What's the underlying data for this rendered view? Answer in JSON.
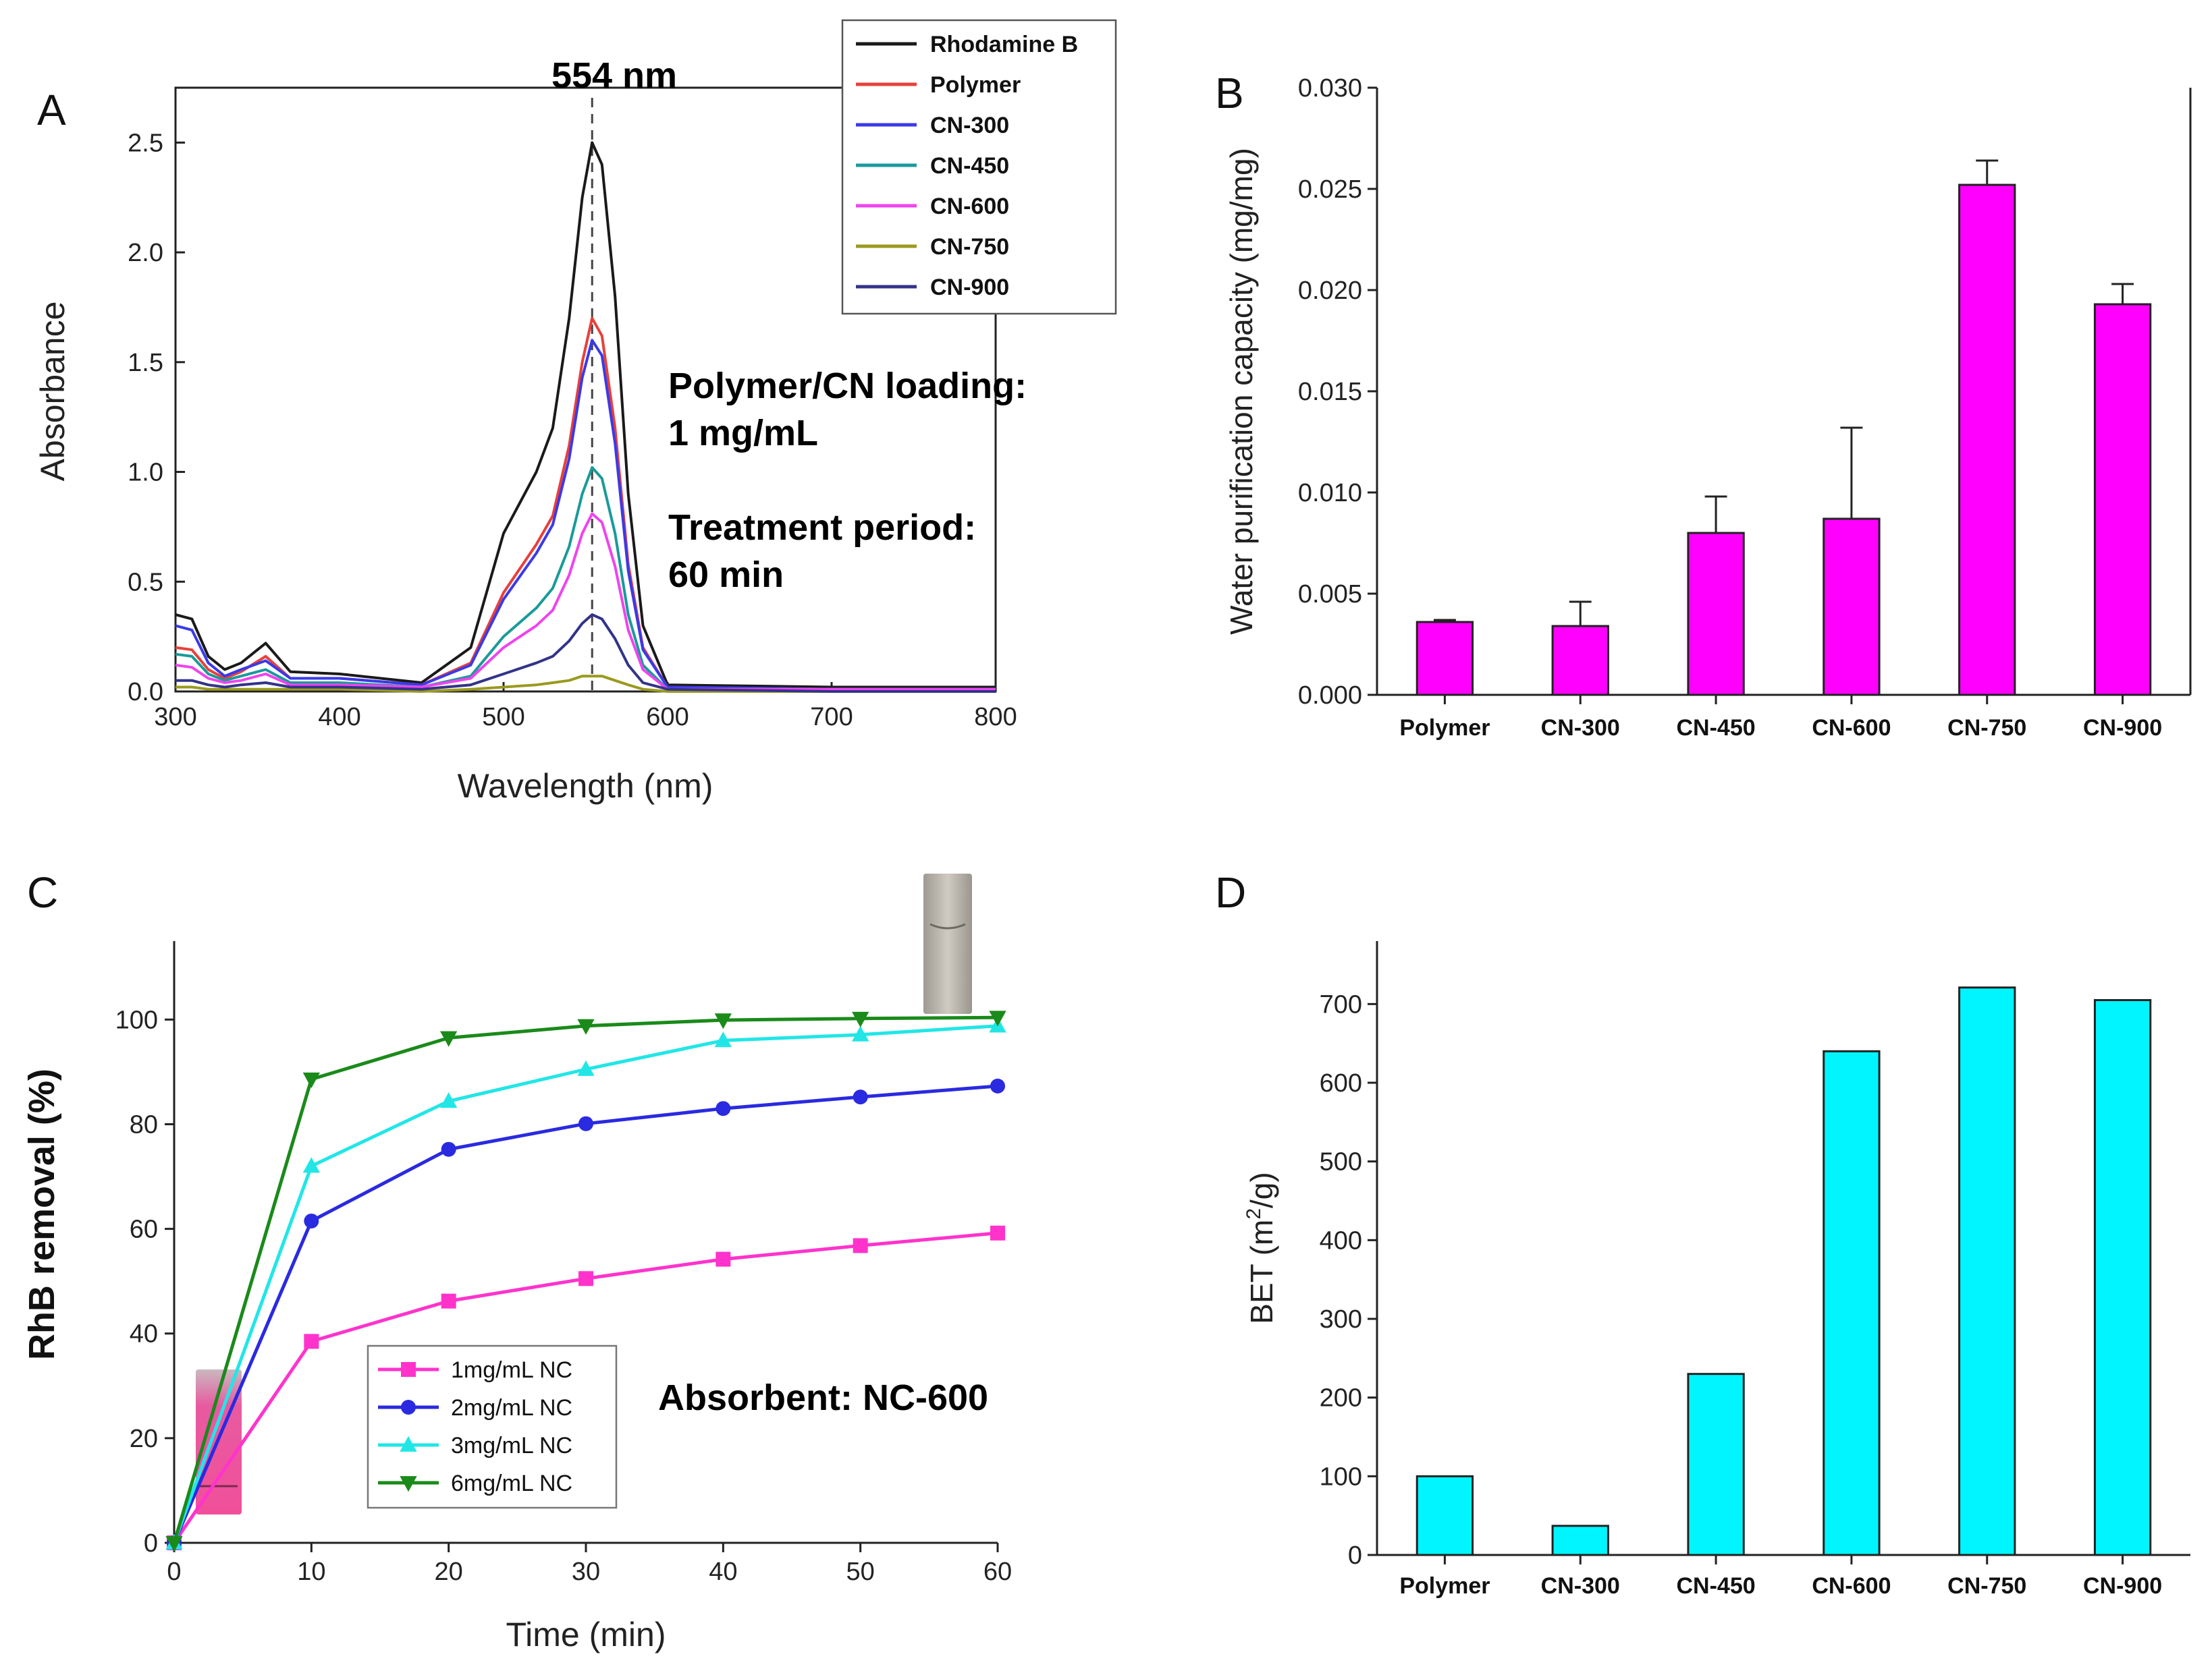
{
  "chart_data": [
    {
      "panel": "A",
      "type": "line",
      "xlabel": "Wavelength (nm)",
      "ylabel": "Absorbance",
      "xlim": [
        300,
        800
      ],
      "ylim": [
        0,
        2.75
      ],
      "xticks": [
        "300",
        "400",
        "500",
        "600",
        "700",
        "800"
      ],
      "yticks": [
        "0.0",
        "0.5",
        "1.0",
        "1.5",
        "2.0",
        "2.5"
      ],
      "peak_label": "554 nm",
      "peak_x": 554,
      "annotations": [
        "Polymer/CN loading:",
        "1 mg/mL",
        "Treatment period:",
        "60 min"
      ],
      "series": [
        {
          "name": "Rhodamine B",
          "color": "#1a1a1a",
          "x": [
            300,
            310,
            320,
            330,
            340,
            355,
            370,
            400,
            450,
            480,
            500,
            520,
            530,
            540,
            548,
            554,
            560,
            568,
            576,
            585,
            600,
            700,
            800
          ],
          "y": [
            0.35,
            0.33,
            0.16,
            0.1,
            0.13,
            0.22,
            0.09,
            0.08,
            0.04,
            0.2,
            0.72,
            1.0,
            1.2,
            1.7,
            2.25,
            2.5,
            2.4,
            1.8,
            0.9,
            0.3,
            0.03,
            0.02,
            0.02
          ]
        },
        {
          "name": "Polymer",
          "color": "#e8403a",
          "x": [
            300,
            310,
            320,
            330,
            340,
            355,
            370,
            400,
            450,
            480,
            500,
            520,
            530,
            540,
            548,
            554,
            560,
            568,
            576,
            585,
            600,
            700,
            800
          ],
          "y": [
            0.2,
            0.19,
            0.1,
            0.06,
            0.09,
            0.16,
            0.06,
            0.06,
            0.03,
            0.13,
            0.45,
            0.67,
            0.8,
            1.12,
            1.5,
            1.7,
            1.62,
            1.2,
            0.58,
            0.2,
            0.02,
            0.01,
            0.01
          ]
        },
        {
          "name": "CN-300",
          "color": "#3a3ae8",
          "x": [
            300,
            310,
            320,
            330,
            340,
            355,
            370,
            400,
            450,
            480,
            500,
            520,
            530,
            540,
            548,
            554,
            560,
            568,
            576,
            585,
            600,
            700,
            800
          ],
          "y": [
            0.3,
            0.28,
            0.13,
            0.07,
            0.1,
            0.14,
            0.06,
            0.06,
            0.03,
            0.12,
            0.42,
            0.63,
            0.76,
            1.06,
            1.43,
            1.6,
            1.53,
            1.13,
            0.55,
            0.19,
            0.02,
            0.01,
            0.01
          ]
        },
        {
          "name": "CN-450",
          "color": "#1a9a9a",
          "x": [
            300,
            310,
            320,
            330,
            340,
            355,
            370,
            400,
            450,
            480,
            500,
            520,
            530,
            540,
            548,
            554,
            560,
            568,
            576,
            585,
            600,
            700,
            800
          ],
          "y": [
            0.17,
            0.16,
            0.08,
            0.05,
            0.07,
            0.1,
            0.04,
            0.04,
            0.02,
            0.07,
            0.25,
            0.38,
            0.47,
            0.66,
            0.9,
            1.02,
            0.97,
            0.72,
            0.35,
            0.12,
            0.01,
            0.01,
            0.01
          ]
        },
        {
          "name": "CN-600",
          "color": "#ee44ee",
          "x": [
            300,
            310,
            320,
            330,
            340,
            355,
            370,
            400,
            450,
            480,
            500,
            520,
            530,
            540,
            548,
            554,
            560,
            568,
            576,
            585,
            600,
            700,
            800
          ],
          "y": [
            0.12,
            0.11,
            0.06,
            0.04,
            0.05,
            0.08,
            0.03,
            0.03,
            0.02,
            0.06,
            0.2,
            0.3,
            0.37,
            0.53,
            0.72,
            0.81,
            0.77,
            0.57,
            0.28,
            0.1,
            0.01,
            0.01,
            0.01
          ]
        },
        {
          "name": "CN-750",
          "color": "#9a9a20",
          "x": [
            300,
            310,
            320,
            330,
            340,
            355,
            370,
            400,
            450,
            480,
            500,
            520,
            530,
            540,
            548,
            554,
            560,
            568,
            576,
            585,
            600,
            700,
            800
          ],
          "y": [
            0.02,
            0.02,
            0.01,
            0.01,
            0.01,
            0.01,
            0.01,
            0.01,
            0.0,
            0.01,
            0.02,
            0.03,
            0.04,
            0.05,
            0.07,
            0.07,
            0.07,
            0.05,
            0.03,
            0.01,
            0.0,
            0.0,
            0.0
          ]
        },
        {
          "name": "CN-900",
          "color": "#33338a",
          "x": [
            300,
            310,
            320,
            330,
            340,
            355,
            370,
            400,
            450,
            480,
            500,
            520,
            530,
            540,
            548,
            554,
            560,
            568,
            576,
            585,
            600,
            700,
            800
          ],
          "y": [
            0.05,
            0.05,
            0.03,
            0.02,
            0.03,
            0.04,
            0.02,
            0.02,
            0.01,
            0.03,
            0.08,
            0.13,
            0.16,
            0.23,
            0.31,
            0.35,
            0.33,
            0.24,
            0.12,
            0.04,
            0.01,
            0.0,
            0.0
          ]
        }
      ]
    },
    {
      "panel": "B",
      "type": "bar",
      "ylabel": "Water purification capacity (mg/mg)",
      "categories": [
        "Polymer",
        "CN-300",
        "CN-450",
        "CN-600",
        "CN-750",
        "CN-900"
      ],
      "values": [
        0.0036,
        0.0034,
        0.008,
        0.0087,
        0.0252,
        0.0193
      ],
      "errors": [
        0.0001,
        0.0012,
        0.0018,
        0.0045,
        0.0012,
        0.001
      ],
      "ylim": [
        0,
        0.03
      ],
      "yticks": [
        "0.000",
        "0.005",
        "0.010",
        "0.015",
        "0.020",
        "0.025",
        "0.030"
      ],
      "color": "#ff00ff"
    },
    {
      "panel": "C",
      "type": "line",
      "xlabel": "Time (min)",
      "ylabel": "RhB removal (%)",
      "xlim": [
        0,
        60
      ],
      "ylim": [
        0,
        115
      ],
      "xticks": [
        "0",
        "10",
        "20",
        "30",
        "40",
        "50",
        "60"
      ],
      "yticks": [
        "0",
        "20",
        "40",
        "60",
        "80",
        "100"
      ],
      "x": [
        0,
        10,
        20,
        30,
        40,
        50,
        60
      ],
      "annotation": "Absorbent: NC-600",
      "series": [
        {
          "name": "1mg/mL NC",
          "color": "#ff33cc",
          "marker": "square",
          "values": [
            0,
            38.5,
            46.2,
            50.5,
            54.2,
            56.8,
            59.2
          ]
        },
        {
          "name": "2mg/mL NC",
          "color": "#2a2ae0",
          "marker": "circle",
          "values": [
            0,
            61.5,
            75.2,
            80.1,
            83.0,
            85.2,
            87.3
          ]
        },
        {
          "name": "3mg/mL NC",
          "color": "#22e6e6",
          "marker": "triangle",
          "values": [
            0,
            72.0,
            84.4,
            90.5,
            96.0,
            97.1,
            98.8
          ]
        },
        {
          "name": "6mg/mL NC",
          "color": "#1a8a1a",
          "marker": "triangle-down",
          "values": [
            0,
            88.6,
            96.5,
            98.8,
            99.9,
            100.2,
            100.4
          ]
        }
      ]
    },
    {
      "panel": "D",
      "type": "bar",
      "ylabel_prefix": "BET (m",
      "ylabel_sup": "2",
      "ylabel_suffix": "/g)",
      "categories": [
        "Polymer",
        "CN-300",
        "CN-450",
        "CN-600",
        "CN-750",
        "CN-900"
      ],
      "values": [
        100,
        37,
        230,
        640,
        721,
        705
      ],
      "ylim": [
        0,
        780
      ],
      "yticks": [
        "0",
        "100",
        "200",
        "300",
        "400",
        "500",
        "600",
        "700"
      ],
      "color": "#00f5ff"
    }
  ],
  "panel_labels": {
    "a": "A",
    "b": "B",
    "c": "C",
    "d": "D"
  }
}
